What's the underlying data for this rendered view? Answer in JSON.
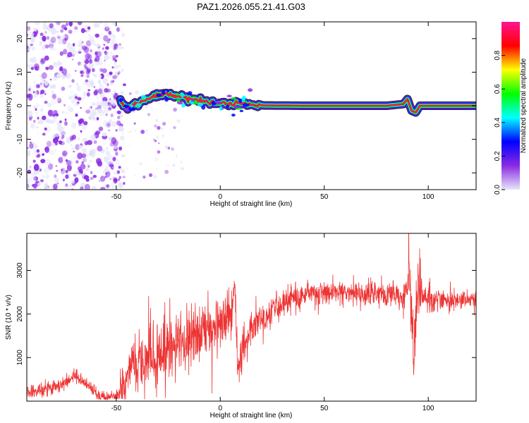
{
  "figure": {
    "title": "PAZ1.2026.055.21.41.G03"
  },
  "chart_data": [
    {
      "type": "heatmap",
      "xlabel": "Height of straight line (km)",
      "ylabel": "Frequency (Hz)",
      "xlim": [
        -93,
        123
      ],
      "ylim": [
        -25,
        25
      ],
      "x_ticks": [
        -50,
        0,
        50,
        100
      ],
      "y_ticks": [
        -20,
        -10,
        0,
        10,
        20
      ],
      "colorbar": {
        "label": "Normalized spectral amplitude",
        "range": [
          0,
          1
        ],
        "ticks": [
          0.0,
          0.2,
          0.4,
          0.6,
          0.8
        ],
        "tick_labels": [
          "0.0",
          "0.2",
          "0.4",
          "0.6",
          "0.8"
        ],
        "colormap": [
          "#e6e6fa",
          "#8a2be2",
          "#0000ff",
          "#00ffff",
          "#00ff00",
          "#ffff00",
          "#ff0000",
          "#ff1493"
        ]
      },
      "signal_track": [
        [
          -48,
          1
        ],
        [
          -45,
          -0.5
        ],
        [
          -40,
          0.5
        ],
        [
          -35,
          2
        ],
        [
          -30,
          3.5
        ],
        [
          -25,
          3.5
        ],
        [
          -20,
          2.8
        ],
        [
          -15,
          2
        ],
        [
          -10,
          1.5
        ],
        [
          -5,
          1
        ],
        [
          0,
          0.8
        ],
        [
          5,
          0.5
        ],
        [
          10,
          0.6
        ],
        [
          15,
          0.3
        ],
        [
          20,
          0.1
        ],
        [
          40,
          0
        ],
        [
          60,
          0
        ],
        [
          80,
          0
        ],
        [
          88,
          0.5
        ],
        [
          90,
          2
        ],
        [
          92,
          -1.5
        ],
        [
          94,
          -2
        ],
        [
          96,
          0
        ],
        [
          100,
          0
        ],
        [
          123,
          0
        ]
      ],
      "noise_region": {
        "x_from": -93,
        "x_to": -50,
        "max_amplitude": 0.15
      }
    },
    {
      "type": "line",
      "xlabel": "Height of straight line (km)",
      "ylabel": "SNR (10 * v/v)",
      "xlim": [
        -93,
        123
      ],
      "ylim": [
        0,
        3850
      ],
      "x_ticks": [
        -50,
        0,
        50,
        100
      ],
      "y_ticks": [
        1000,
        2000,
        3000
      ],
      "color": "#ee3333",
      "envelope": [
        [
          -93,
          220
        ],
        [
          -85,
          260
        ],
        [
          -75,
          400
        ],
        [
          -70,
          600
        ],
        [
          -65,
          420
        ],
        [
          -60,
          180
        ],
        [
          -55,
          60
        ],
        [
          -50,
          90
        ],
        [
          -47,
          250
        ],
        [
          -45,
          700
        ],
        [
          -40,
          850
        ],
        [
          -35,
          1000
        ],
        [
          -30,
          1100
        ],
        [
          -25,
          1200
        ],
        [
          -20,
          1300
        ],
        [
          -15,
          1450
        ],
        [
          -10,
          1580
        ],
        [
          -5,
          1700
        ],
        [
          0,
          1800
        ],
        [
          5,
          1950
        ],
        [
          6,
          2300
        ],
        [
          7,
          2800
        ],
        [
          8,
          1200
        ],
        [
          9,
          700
        ],
        [
          10,
          1100
        ],
        [
          15,
          1600
        ],
        [
          20,
          1800
        ],
        [
          25,
          2100
        ],
        [
          30,
          2300
        ],
        [
          40,
          2450
        ],
        [
          50,
          2500
        ],
        [
          60,
          2480
        ],
        [
          70,
          2450
        ],
        [
          80,
          2450
        ],
        [
          88,
          2400
        ],
        [
          90,
          2700
        ],
        [
          91,
          3100
        ],
        [
          92,
          2000
        ],
        [
          93,
          600
        ],
        [
          94,
          1800
        ],
        [
          95,
          2800
        ],
        [
          97,
          2400
        ],
        [
          100,
          2350
        ],
        [
          110,
          2300
        ],
        [
          123,
          2330
        ]
      ],
      "noise_sigma": [
        [
          -93,
          90
        ],
        [
          -50,
          80
        ],
        [
          -47,
          300
        ],
        [
          -30,
          420
        ],
        [
          -10,
          380
        ],
        [
          5,
          300
        ],
        [
          10,
          250
        ],
        [
          20,
          200
        ],
        [
          30,
          160
        ],
        [
          60,
          140
        ],
        [
          88,
          150
        ],
        [
          91,
          500
        ],
        [
          95,
          400
        ],
        [
          98,
          150
        ],
        [
          123,
          100
        ]
      ]
    }
  ]
}
